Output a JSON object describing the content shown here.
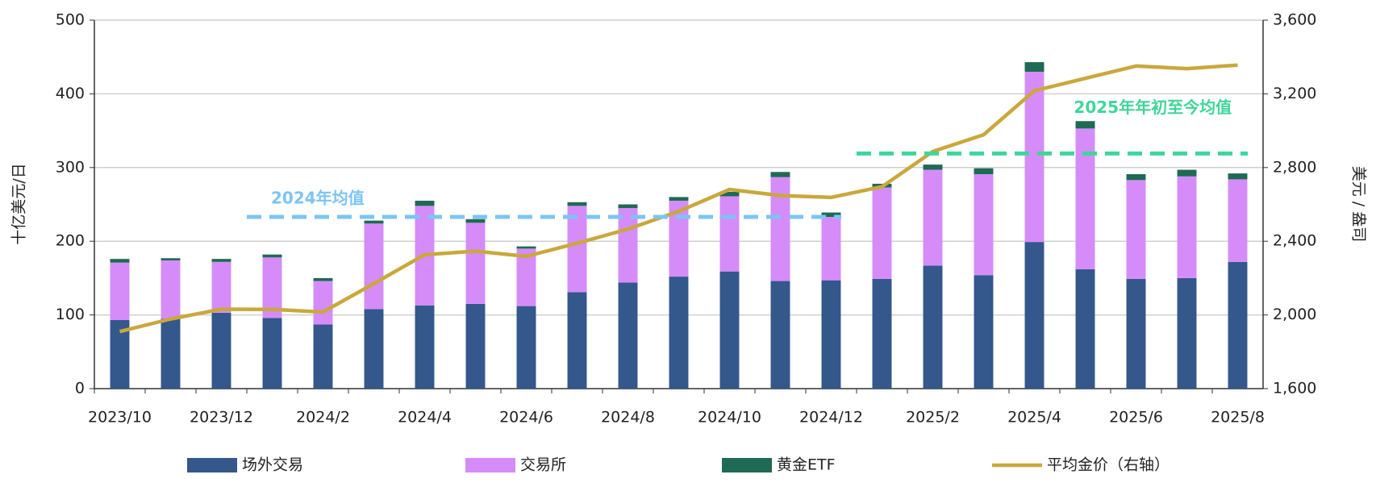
{
  "chart_data": {
    "type": "bar",
    "y_label": "十亿美元/日",
    "y2_label": "美元 / 盎司",
    "categories": [
      "2023/10",
      null,
      "2023/12",
      null,
      "2024/2",
      null,
      "2024/4",
      null,
      "2024/6",
      null,
      "2024/8",
      null,
      "2024/10",
      null,
      "2024/12",
      null,
      "2025/2",
      null,
      "2025/4",
      null,
      "2025/6",
      null,
      "2025/8"
    ],
    "stacked": true,
    "series": [
      {
        "name": "场外交易",
        "color": "#34578c",
        "values": [
          93,
          95,
          103,
          96,
          87,
          108,
          113,
          115,
          112,
          131,
          144,
          152,
          159,
          146,
          147,
          149,
          167,
          154,
          199,
          162,
          149,
          150,
          172
        ]
      },
      {
        "name": "交易所",
        "color": "#d58cf8",
        "values": [
          78,
          79,
          69,
          82,
          59,
          116,
          135,
          110,
          78,
          117,
          101,
          103,
          102,
          141,
          86,
          124,
          130,
          137,
          231,
          191,
          134,
          138,
          112
        ]
      },
      {
        "name": "黄金ETF",
        "color": "#1e6a54",
        "values": [
          5,
          3,
          4,
          4,
          4,
          4,
          7,
          5,
          3,
          5,
          5,
          5,
          6,
          7,
          6,
          5,
          7,
          8,
          13,
          10,
          8,
          9,
          8
        ]
      },
      {
        "name": "平均金价（右轴）",
        "type": "line",
        "axis": "y2",
        "color": "#c9a83c",
        "values": [
          1910,
          1978,
          2031,
          2030,
          2016,
          2170,
          2327,
          2346,
          2318,
          2389,
          2466,
          2562,
          2681,
          2648,
          2638,
          2696,
          2887,
          2978,
          3217,
          3284,
          3351,
          3337,
          3356
        ]
      }
    ],
    "reference_lines": [
      {
        "label": "2024年均值",
        "value": 233,
        "color": "#7cc4f5",
        "x_range": [
          3,
          14
        ]
      },
      {
        "label": "2025年年初至今均值",
        "value": 319,
        "color": "#3fd69a",
        "x_range": [
          15,
          22
        ]
      }
    ],
    "ylim": [
      0,
      500
    ],
    "yticks": [
      0,
      100,
      200,
      300,
      400,
      500
    ],
    "y2lim": [
      1600,
      3600
    ],
    "y2ticks": [
      {
        "value": 1600,
        "label": "1,600"
      },
      {
        "value": 2000,
        "label": "2,000"
      },
      {
        "value": 2400,
        "label": "2,400"
      },
      {
        "value": 2800,
        "label": "2,800"
      },
      {
        "value": 3200,
        "label": "3,200"
      },
      {
        "value": 3600,
        "label": "3,600"
      }
    ],
    "grid": true,
    "legend": "bottom"
  }
}
